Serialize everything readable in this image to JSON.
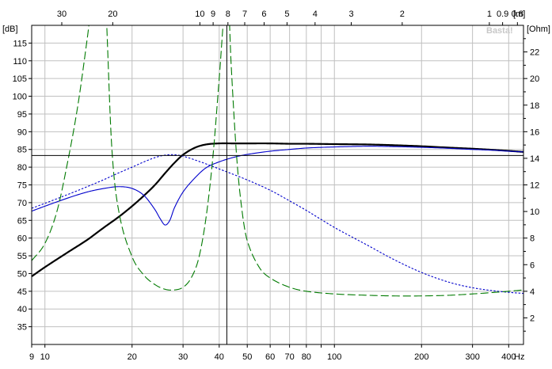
{
  "chart_data": {
    "type": "line",
    "watermark": "Basta!",
    "x_axis": {
      "unit": "Hz",
      "scale": "log",
      "range": [
        9,
        450
      ],
      "ticks": [
        {
          "v": 9,
          "label": "9"
        },
        {
          "v": 10,
          "label": "10"
        },
        {
          "v": 20,
          "label": "20"
        },
        {
          "v": 30,
          "label": "30"
        },
        {
          "v": 40,
          "label": "40"
        },
        {
          "v": 50,
          "label": "50"
        },
        {
          "v": 60,
          "label": "60"
        },
        {
          "v": 70,
          "label": "70"
        },
        {
          "v": 80,
          "label": "80"
        },
        {
          "v": 100,
          "label": "100"
        },
        {
          "v": 200,
          "label": "200"
        },
        {
          "v": 300,
          "label": "300"
        },
        {
          "v": 400,
          "label": "400"
        }
      ]
    },
    "top_axis": {
      "unit": "[m]",
      "ticks": [
        {
          "v": 30,
          "label": "30"
        },
        {
          "v": 20,
          "label": "20"
        },
        {
          "v": 10,
          "label": "10"
        },
        {
          "v": 9,
          "label": "9"
        },
        {
          "v": 8,
          "label": "8"
        },
        {
          "v": 7,
          "label": "7"
        },
        {
          "v": 6,
          "label": "6"
        },
        {
          "v": 5,
          "label": "5"
        },
        {
          "v": 4,
          "label": "4"
        },
        {
          "v": 3,
          "label": "3"
        },
        {
          "v": 2,
          "label": "2"
        },
        {
          "v": 1,
          "label": "1"
        },
        {
          "v": 0.9,
          "label": "0.9"
        },
        {
          "v": 0.8,
          "label": "0.8"
        }
      ]
    },
    "y_left": {
      "unit": "[dB]",
      "range": [
        30,
        120
      ],
      "ticks": [
        "35",
        "40",
        "45",
        "50",
        "55",
        "60",
        "65",
        "70",
        "75",
        "80",
        "85",
        "90",
        "95",
        "100",
        "105",
        "110",
        "115"
      ]
    },
    "y_right": {
      "unit": "[Ohm]",
      "range": [
        0,
        24
      ],
      "ticks": [
        "2",
        "4",
        "6",
        "8",
        "10",
        "12",
        "14",
        "16",
        "18",
        "20",
        "22"
      ]
    },
    "cursor": {
      "freq_hz": 42.5,
      "level_db": 83.3
    },
    "series": [
      {
        "axis": "left",
        "color": "#000000",
        "style": "solid-thick",
        "x": [
          9,
          10,
          12,
          14,
          16,
          18,
          20,
          22,
          24,
          26,
          28,
          30,
          33,
          36,
          40,
          45,
          50,
          60,
          70,
          80,
          100,
          130,
          160,
          200,
          250,
          300,
          350,
          400,
          450
        ],
        "y": [
          49.2,
          51.8,
          56,
          59.5,
          63,
          66,
          69,
          72,
          75,
          78.3,
          81.2,
          83.5,
          85.5,
          86.4,
          86.7,
          86.7,
          86.7,
          86.7,
          86.6,
          86.6,
          86.5,
          86.4,
          86.2,
          85.9,
          85.5,
          85.2,
          84.9,
          84.6,
          84.3
        ]
      },
      {
        "axis": "left",
        "color": "#0000cc",
        "style": "solid-thin",
        "x": [
          9,
          10,
          12,
          14,
          16,
          18,
          20,
          22,
          24,
          25,
          26,
          27,
          28,
          30,
          33,
          36,
          40,
          45,
          50,
          60,
          70,
          80,
          100,
          130,
          160,
          200,
          250,
          300,
          350,
          400,
          450
        ],
        "y": [
          67.6,
          69,
          71.3,
          73,
          74,
          74.5,
          74,
          72,
          68,
          65.5,
          63.7,
          65,
          68.5,
          73,
          77,
          79.8,
          81.5,
          82.8,
          83.6,
          84.5,
          85,
          85.4,
          85.7,
          85.9,
          85.8,
          85.6,
          85.3,
          85,
          84.8,
          84.5,
          84.3
        ]
      },
      {
        "axis": "left",
        "color": "#0000cc",
        "style": "dotted",
        "x": [
          9,
          10,
          12,
          14,
          16,
          18,
          20,
          22,
          24,
          26,
          28,
          30,
          35,
          40,
          50,
          60,
          70,
          80,
          100,
          130,
          160,
          200,
          250,
          300,
          350,
          400,
          450
        ],
        "y": [
          68.4,
          69.8,
          72.3,
          74.5,
          76.5,
          78.4,
          80,
          81.5,
          82.7,
          83.4,
          83.5,
          83.1,
          81.3,
          79.5,
          76.4,
          73.5,
          70.5,
          67.8,
          63,
          58,
          54,
          50.3,
          47.5,
          46,
          45.2,
          44.7,
          44.4
        ]
      },
      {
        "axis": "right",
        "color": "#007a00",
        "style": "dashed",
        "x": [
          9,
          10,
          11,
          12,
          13,
          14,
          15,
          16,
          17,
          18,
          20,
          22,
          24,
          26,
          28,
          30,
          32,
          34,
          36,
          38,
          40,
          42,
          43,
          44,
          46,
          48,
          50,
          55,
          60,
          70,
          80,
          100,
          130,
          160,
          200,
          250,
          300,
          350,
          400,
          450
        ],
        "y": [
          6.3,
          7.6,
          10,
          13.8,
          18,
          23,
          28,
          28,
          15,
          10,
          6.6,
          5.2,
          4.5,
          4.15,
          4.1,
          4.3,
          5,
          6.5,
          9.5,
          14,
          20,
          26,
          26,
          21,
          14,
          10,
          7.8,
          5.8,
          5,
          4.3,
          4,
          3.8,
          3.7,
          3.65,
          3.65,
          3.7,
          3.8,
          3.9,
          4,
          4.1
        ]
      }
    ]
  }
}
